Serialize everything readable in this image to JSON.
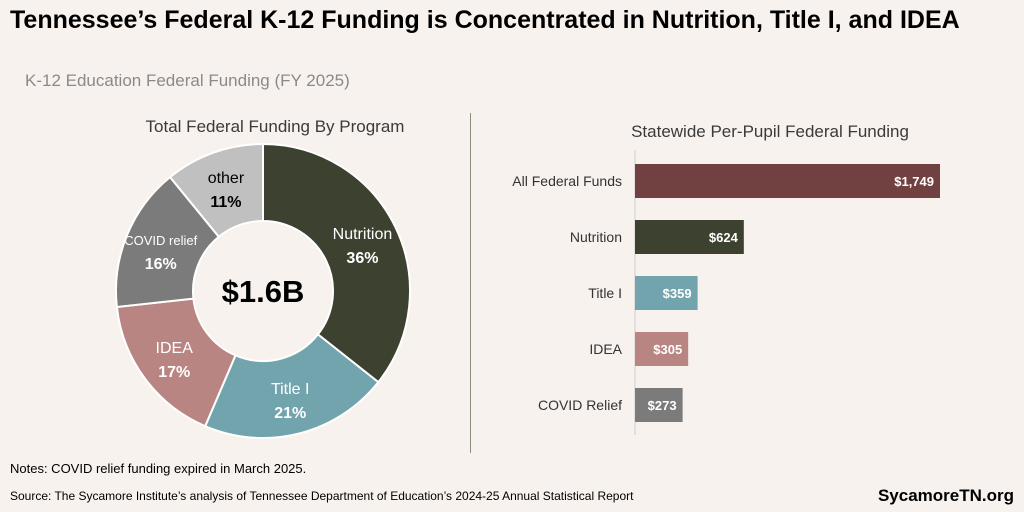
{
  "header": {
    "title": "Tennessee’s Federal K-12 Funding is Concentrated in Nutrition, Title I, and IDEA",
    "subtitle": "K-12 Education Federal Funding (FY 2025)"
  },
  "footer": {
    "notes": "Notes: COVID relief funding expired in March 2025.",
    "source": "Source: The Sycamore Institute’s analysis of Tennessee Department of Education’s 2024-25 Annual Statistical Report",
    "brand": "SycamoreTN.org"
  },
  "chart_data": [
    {
      "type": "pie",
      "title": "Total Federal Funding By Program",
      "center_label": "$1.6B",
      "slices": [
        {
          "label": "Nutrition",
          "value": 36,
          "value_label": "36%",
          "color": "#3d4230",
          "label_color": "#ffffff"
        },
        {
          "label": "Title I",
          "value": 21,
          "value_label": "21%",
          "color": "#72a4ad",
          "label_color": "#ffffff"
        },
        {
          "label": "IDEA",
          "value": 17,
          "value_label": "17%",
          "color": "#b98582",
          "label_color": "#ffffff"
        },
        {
          "label": "COVID relief",
          "value": 16,
          "value_label": "16%",
          "color": "#7b7b7b",
          "label_color": "#ffffff"
        },
        {
          "label": "other",
          "value": 11,
          "value_label": "11%",
          "color": "#c0c0c0",
          "label_color": "#000000"
        }
      ]
    },
    {
      "type": "bar",
      "orientation": "horizontal",
      "title": "Statewide Per-Pupil Federal Funding",
      "categories": [
        "All Federal Funds",
        "Nutrition",
        "Title I",
        "IDEA",
        "COVID Relief"
      ],
      "values": [
        1749,
        624,
        359,
        305,
        273
      ],
      "value_labels": [
        "$1,749",
        "$624",
        "$359",
        "$305",
        "$273"
      ],
      "colors": [
        "#714141",
        "#3d4230",
        "#72a4ad",
        "#b98582",
        "#7b7b7b"
      ],
      "xlim": [
        0,
        1749
      ]
    }
  ]
}
